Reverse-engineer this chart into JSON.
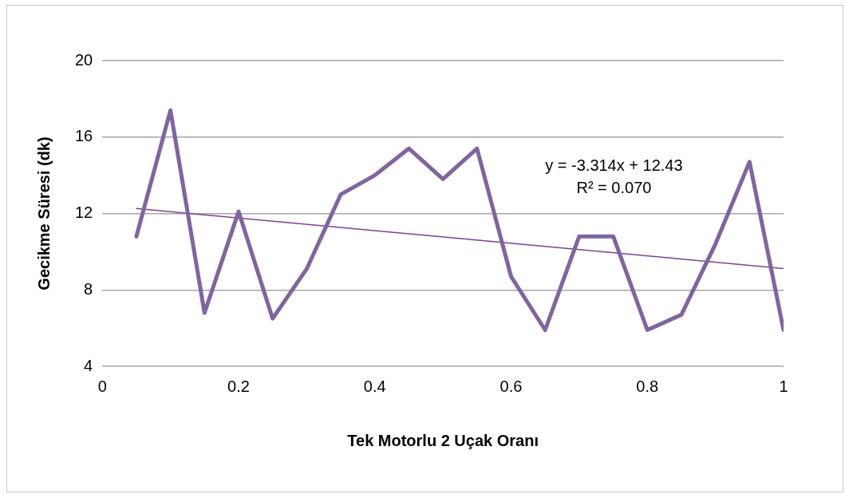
{
  "chart_data": {
    "type": "line",
    "xlabel": "Tek Motorlu 2 Uçak Oranı",
    "ylabel": "Gecikme Süresi (dk)",
    "x": [
      0.05,
      0.1,
      0.15,
      0.2,
      0.25,
      0.3,
      0.35,
      0.4,
      0.45,
      0.5,
      0.55,
      0.6,
      0.65,
      0.7,
      0.75,
      0.8,
      0.85,
      0.9,
      0.95,
      1.0
    ],
    "series": [
      {
        "color": "#8064a2",
        "values": [
          10.8,
          17.4,
          6.8,
          12.1,
          6.5,
          9.1,
          13.0,
          14.0,
          15.4,
          13.8,
          15.4,
          8.7,
          5.9,
          10.8,
          10.8,
          5.9,
          6.7,
          10.4,
          14.7,
          5.9
        ]
      },
      {
        "type": "line",
        "x": [
          0.05,
          1.0
        ],
        "color": "#7f3f98",
        "values": [
          12.26,
          9.12
        ]
      }
    ],
    "xlim": [
      0,
      1
    ],
    "xticks": [
      0,
      0.2,
      0.4,
      0.6,
      0.8,
      1
    ],
    "ylim": [
      4,
      20
    ],
    "yticks": [
      4,
      8,
      12,
      16,
      20
    ],
    "grid": "y",
    "legend": false,
    "marker": "none",
    "annotations": [
      "y = -3.314x + 12.43",
      "R² = 0.070"
    ]
  }
}
